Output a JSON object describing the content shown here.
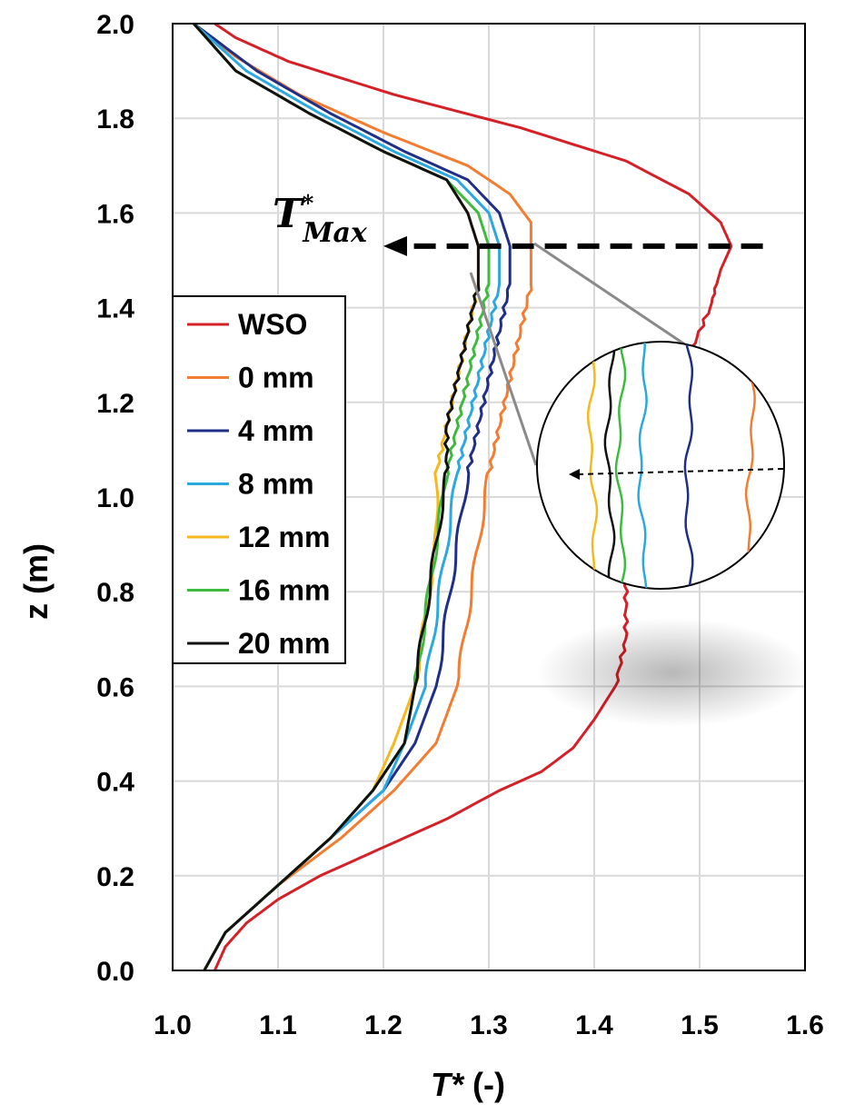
{
  "chart_data": {
    "type": "line",
    "xlabel_main": "T*",
    "xlabel_unit": " (-)",
    "ylabel": "z (m)",
    "xlim": [
      1.0,
      1.6
    ],
    "ylim": [
      0.0,
      2.0
    ],
    "x_ticks": [
      "1.0",
      "1.1",
      "1.2",
      "1.3",
      "1.4",
      "1.5",
      "1.6"
    ],
    "y_ticks": [
      "0.0",
      "0.2",
      "0.4",
      "0.6",
      "0.8",
      "1.0",
      "1.2",
      "1.4",
      "1.6",
      "1.8",
      "2.0"
    ],
    "grid": true,
    "legend_position": "left",
    "annotation": {
      "main": "T",
      "sup": "*",
      "sub": "Max",
      "arrow_from": [
        1.56,
        1.53
      ],
      "arrow_to": [
        1.2,
        1.53
      ]
    },
    "series": [
      {
        "name": "WSO",
        "color": "#d42027",
        "points": [
          [
            1.04,
            0.0
          ],
          [
            1.05,
            0.05
          ],
          [
            1.07,
            0.1
          ],
          [
            1.1,
            0.15
          ],
          [
            1.14,
            0.2
          ],
          [
            1.2,
            0.26
          ],
          [
            1.26,
            0.32
          ],
          [
            1.31,
            0.38
          ],
          [
            1.35,
            0.42
          ],
          [
            1.38,
            0.47
          ],
          [
            1.4,
            0.53
          ],
          [
            1.42,
            0.6
          ],
          [
            1.43,
            0.7
          ],
          [
            1.43,
            0.8
          ],
          [
            1.43,
            0.9
          ],
          [
            1.44,
            1.0
          ],
          [
            1.45,
            1.1
          ],
          [
            1.47,
            1.2
          ],
          [
            1.49,
            1.3
          ],
          [
            1.51,
            1.4
          ],
          [
            1.52,
            1.48
          ],
          [
            1.53,
            1.53
          ],
          [
            1.52,
            1.58
          ],
          [
            1.49,
            1.64
          ],
          [
            1.43,
            1.71
          ],
          [
            1.33,
            1.78
          ],
          [
            1.21,
            1.85
          ],
          [
            1.11,
            1.92
          ],
          [
            1.06,
            1.97
          ],
          [
            1.04,
            2.0
          ]
        ]
      },
      {
        "name": "0 mm",
        "color": "#f47c30",
        "points": [
          [
            1.03,
            0.0
          ],
          [
            1.05,
            0.08
          ],
          [
            1.1,
            0.18
          ],
          [
            1.16,
            0.28
          ],
          [
            1.21,
            0.38
          ],
          [
            1.25,
            0.48
          ],
          [
            1.27,
            0.6
          ],
          [
            1.28,
            0.75
          ],
          [
            1.29,
            0.9
          ],
          [
            1.3,
            1.05
          ],
          [
            1.31,
            1.15
          ],
          [
            1.32,
            1.25
          ],
          [
            1.33,
            1.35
          ],
          [
            1.34,
            1.45
          ],
          [
            1.34,
            1.53
          ],
          [
            1.34,
            1.58
          ],
          [
            1.32,
            1.64
          ],
          [
            1.28,
            1.7
          ],
          [
            1.2,
            1.77
          ],
          [
            1.12,
            1.85
          ],
          [
            1.06,
            1.93
          ],
          [
            1.02,
            2.0
          ]
        ]
      },
      {
        "name": "4 mm",
        "color": "#1f2e86",
        "points": [
          [
            1.03,
            0.0
          ],
          [
            1.05,
            0.08
          ],
          [
            1.1,
            0.18
          ],
          [
            1.15,
            0.28
          ],
          [
            1.2,
            0.38
          ],
          [
            1.23,
            0.48
          ],
          [
            1.25,
            0.6
          ],
          [
            1.26,
            0.75
          ],
          [
            1.27,
            0.9
          ],
          [
            1.28,
            1.05
          ],
          [
            1.29,
            1.15
          ],
          [
            1.3,
            1.25
          ],
          [
            1.31,
            1.35
          ],
          [
            1.32,
            1.45
          ],
          [
            1.32,
            1.53
          ],
          [
            1.31,
            1.6
          ],
          [
            1.28,
            1.67
          ],
          [
            1.22,
            1.73
          ],
          [
            1.15,
            1.81
          ],
          [
            1.08,
            1.9
          ],
          [
            1.02,
            2.0
          ]
        ]
      },
      {
        "name": "8 mm",
        "color": "#2aa8e0",
        "points": [
          [
            1.03,
            0.0
          ],
          [
            1.05,
            0.08
          ],
          [
            1.1,
            0.18
          ],
          [
            1.15,
            0.28
          ],
          [
            1.2,
            0.38
          ],
          [
            1.22,
            0.48
          ],
          [
            1.24,
            0.6
          ],
          [
            1.25,
            0.75
          ],
          [
            1.26,
            0.9
          ],
          [
            1.27,
            1.05
          ],
          [
            1.28,
            1.15
          ],
          [
            1.29,
            1.25
          ],
          [
            1.3,
            1.35
          ],
          [
            1.31,
            1.45
          ],
          [
            1.31,
            1.53
          ],
          [
            1.3,
            1.6
          ],
          [
            1.27,
            1.67
          ],
          [
            1.21,
            1.73
          ],
          [
            1.14,
            1.81
          ],
          [
            1.07,
            1.9
          ],
          [
            1.02,
            2.0
          ]
        ]
      },
      {
        "name": "12 mm",
        "color": "#f6b81c",
        "points": [
          [
            1.03,
            0.0
          ],
          [
            1.05,
            0.08
          ],
          [
            1.1,
            0.18
          ],
          [
            1.15,
            0.28
          ],
          [
            1.19,
            0.38
          ],
          [
            1.21,
            0.48
          ],
          [
            1.23,
            0.6
          ],
          [
            1.24,
            0.75
          ],
          [
            1.25,
            0.9
          ],
          [
            1.25,
            1.05
          ],
          [
            1.26,
            1.15
          ],
          [
            1.27,
            1.25
          ],
          [
            1.28,
            1.35
          ],
          [
            1.29,
            1.45
          ],
          [
            1.29,
            1.53
          ],
          [
            1.28,
            1.6
          ],
          [
            1.26,
            1.67
          ],
          [
            1.2,
            1.73
          ],
          [
            1.13,
            1.81
          ],
          [
            1.06,
            1.9
          ],
          [
            1.02,
            2.0
          ]
        ]
      },
      {
        "name": "16 mm",
        "color": "#3dbb3d",
        "points": [
          [
            1.03,
            0.0
          ],
          [
            1.05,
            0.08
          ],
          [
            1.1,
            0.18
          ],
          [
            1.15,
            0.28
          ],
          [
            1.19,
            0.38
          ],
          [
            1.22,
            0.48
          ],
          [
            1.23,
            0.6
          ],
          [
            1.24,
            0.75
          ],
          [
            1.25,
            0.9
          ],
          [
            1.26,
            1.05
          ],
          [
            1.27,
            1.15
          ],
          [
            1.28,
            1.25
          ],
          [
            1.29,
            1.35
          ],
          [
            1.3,
            1.45
          ],
          [
            1.3,
            1.53
          ],
          [
            1.29,
            1.6
          ],
          [
            1.26,
            1.67
          ],
          [
            1.2,
            1.73
          ],
          [
            1.13,
            1.81
          ],
          [
            1.06,
            1.9
          ],
          [
            1.02,
            2.0
          ]
        ]
      },
      {
        "name": "20 mm",
        "color": "#111111",
        "points": [
          [
            1.03,
            0.0
          ],
          [
            1.05,
            0.08
          ],
          [
            1.1,
            0.18
          ],
          [
            1.15,
            0.28
          ],
          [
            1.19,
            0.38
          ],
          [
            1.22,
            0.48
          ],
          [
            1.23,
            0.6
          ],
          [
            1.24,
            0.75
          ],
          [
            1.25,
            0.9
          ],
          [
            1.26,
            1.05
          ],
          [
            1.26,
            1.15
          ],
          [
            1.27,
            1.25
          ],
          [
            1.28,
            1.35
          ],
          [
            1.29,
            1.45
          ],
          [
            1.29,
            1.53
          ],
          [
            1.28,
            1.6
          ],
          [
            1.26,
            1.67
          ],
          [
            1.2,
            1.73
          ],
          [
            1.13,
            1.81
          ],
          [
            1.06,
            1.9
          ],
          [
            1.02,
            2.0
          ]
        ]
      }
    ],
    "zoom_inset": {
      "x_center": [
        1.55,
        1.36,
        1.345,
        1.33,
        1.315,
        1.305,
        1.3
      ]
    }
  }
}
